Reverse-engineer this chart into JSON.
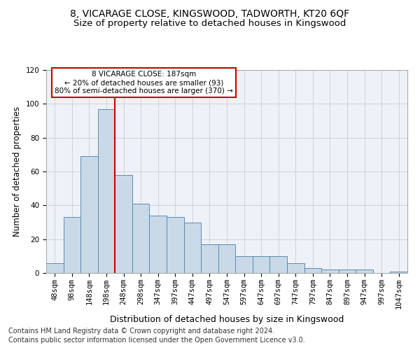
{
  "title1": "8, VICARAGE CLOSE, KINGSWOOD, TADWORTH, KT20 6QF",
  "title2": "Size of property relative to detached houses in Kingswood",
  "xlabel": "Distribution of detached houses by size in Kingswood",
  "ylabel": "Number of detached properties",
  "bins": [
    "48sqm",
    "98sqm",
    "148sqm",
    "198sqm",
    "248sqm",
    "298sqm",
    "347sqm",
    "397sqm",
    "447sqm",
    "497sqm",
    "547sqm",
    "597sqm",
    "647sqm",
    "697sqm",
    "747sqm",
    "797sqm",
    "847sqm",
    "897sqm",
    "947sqm",
    "997sqm",
    "1047sqm"
  ],
  "values": [
    6,
    33,
    69,
    97,
    58,
    41,
    34,
    33,
    30,
    17,
    17,
    10,
    10,
    10,
    6,
    3,
    2,
    2,
    2,
    0,
    1
  ],
  "bar_color": "#c9d9e8",
  "bar_edge_color": "#5a8ab0",
  "vline_x": 3.5,
  "vline_color": "#cc0000",
  "annotation_text": "8 VICARAGE CLOSE: 187sqm\n← 20% of detached houses are smaller (93)\n80% of semi-detached houses are larger (370) →",
  "annotation_box_color": "#ffffff",
  "annotation_box_edge": "#cc0000",
  "ylim": [
    0,
    120
  ],
  "yticks": [
    0,
    20,
    40,
    60,
    80,
    100,
    120
  ],
  "bg_color": "#eef2f8",
  "footer1": "Contains HM Land Registry data © Crown copyright and database right 2024.",
  "footer2": "Contains public sector information licensed under the Open Government Licence v3.0.",
  "title1_fontsize": 10,
  "title2_fontsize": 9.5,
  "xlabel_fontsize": 9,
  "ylabel_fontsize": 8.5,
  "tick_fontsize": 7.5,
  "annot_fontsize": 7.5,
  "footer_fontsize": 7
}
